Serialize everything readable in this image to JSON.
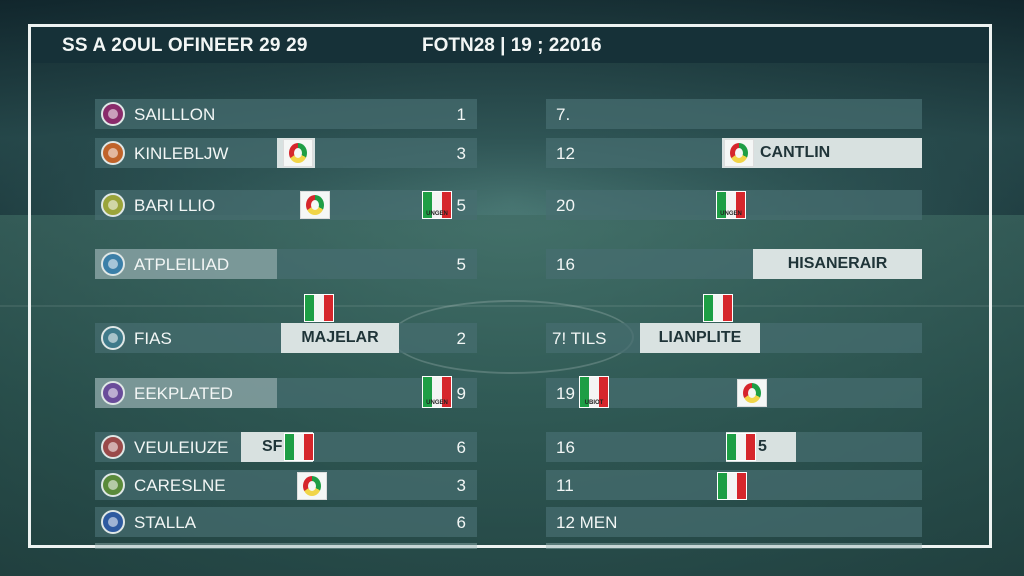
{
  "header": {
    "title": "SS A 2OUL OFINEER 29 29",
    "date": "FOTN28 | 19 ; 22016"
  },
  "left_rows": [
    {
      "team": "SAILLLON",
      "score": "1"
    },
    {
      "team": "KINLEBLJW",
      "score": "3"
    },
    {
      "team": "BARI LLIO",
      "score": "5",
      "flag_caption": "UNGEN"
    },
    {
      "team": "ATPLEILIAD",
      "score": "5"
    },
    {
      "team": "FIAS",
      "score": "2",
      "plate": "MAJELAR"
    },
    {
      "team": "EEKPLATED",
      "score": "9",
      "flag_caption": "UNGEN"
    },
    {
      "team": "VEULEIUZE",
      "score": "6",
      "plate": "SF"
    },
    {
      "team": "CARESLNE",
      "score": "3"
    },
    {
      "team": "STALLA",
      "score": "6"
    }
  ],
  "right_rows": [
    {
      "score": "7.",
      "label": ""
    },
    {
      "score": "12",
      "label": "CANTLIN"
    },
    {
      "score": "20",
      "label": "",
      "flag_caption": "UNGEN"
    },
    {
      "score": "16",
      "label": "HISANERAIR"
    },
    {
      "score": "7! TILS",
      "label": "LIANPLITE"
    },
    {
      "score": "19",
      "label": "",
      "flag_caption": "UBIOT"
    },
    {
      "score": "16",
      "label": "5"
    },
    {
      "score": "11",
      "label": ""
    },
    {
      "score": "12 MEN",
      "label": ""
    }
  ],
  "colors": {
    "crest_1": "#8a2b6b",
    "crest_2": "#c0632a",
    "crest_3": "#9aa43a",
    "crest_4": "#3b7fa8",
    "crest_5": "#3f7a8a",
    "crest_6": "#6a4c9a",
    "crest_7": "#9a4a4a",
    "crest_8": "#5a8a3a",
    "crest_9": "#2e5aa0"
  }
}
